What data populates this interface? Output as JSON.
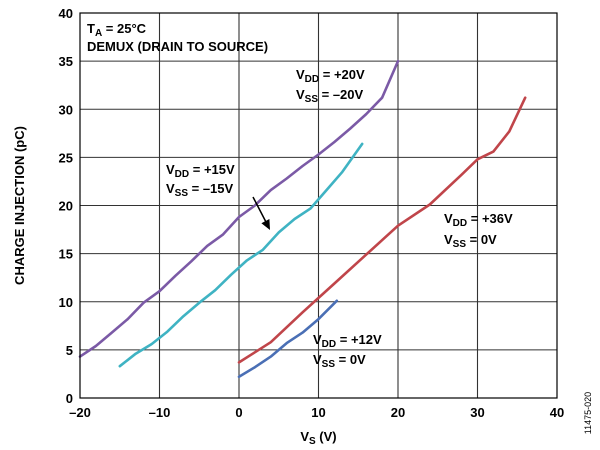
{
  "chart_data": {
    "type": "line",
    "title": "",
    "xlabel": "V|S| (V)",
    "ylabel": "CHARGE INJECTION (pC)",
    "xlim": [
      -20,
      40
    ],
    "ylim": [
      0,
      40
    ],
    "xticks": [
      -20,
      -10,
      0,
      10,
      20,
      30,
      40
    ],
    "yticks": [
      0,
      5,
      10,
      15,
      20,
      25,
      30,
      35,
      40
    ],
    "xtick_labels": [
      "–20",
      "–10",
      "0",
      "10",
      "20",
      "30",
      "40"
    ],
    "ytick_labels": [
      "0",
      "5",
      "10",
      "15",
      "20",
      "25",
      "30",
      "35",
      "40"
    ],
    "grid": true,
    "series": [
      {
        "color": "#7b5aa6",
        "x": [
          -20,
          -18,
          -16,
          -14,
          -12,
          -10,
          -8,
          -6,
          -4,
          -2,
          0,
          2,
          4,
          6,
          8,
          10,
          12,
          14,
          16,
          18,
          20
        ],
        "y": [
          4.3,
          5.4,
          6.8,
          8.2,
          9.9,
          11.1,
          12.7,
          14.2,
          15.8,
          17.0,
          18.8,
          20.0,
          21.6,
          22.8,
          24.1,
          25.3,
          26.6,
          28.0,
          29.5,
          31.2,
          35.0
        ]
      },
      {
        "color": "#3fb3c3",
        "x": [
          -15,
          -13,
          -11,
          -9,
          -7,
          -5,
          -3,
          -1,
          1,
          3,
          5,
          7,
          9,
          11,
          13,
          15.5
        ],
        "y": [
          3.3,
          4.6,
          5.6,
          6.9,
          8.5,
          9.9,
          11.2,
          12.8,
          14.3,
          15.4,
          17.2,
          18.6,
          19.7,
          21.6,
          23.5,
          26.4
        ]
      },
      {
        "color": "#c0454a",
        "x": [
          0,
          4,
          8,
          12,
          16,
          20,
          24,
          28,
          30,
          32,
          34,
          36
        ],
        "y": [
          3.7,
          5.8,
          8.9,
          11.9,
          14.9,
          17.9,
          20.1,
          23.2,
          24.8,
          25.6,
          27.7,
          31.2
        ]
      },
      {
        "color": "#4a6fb5",
        "x": [
          0,
          2,
          4,
          6,
          8,
          10,
          12.3
        ],
        "y": [
          2.2,
          3.2,
          4.3,
          5.7,
          6.8,
          8.2,
          10.1
        ]
      }
    ],
    "annotations": [
      {
        "text": "T|A| = 25°C"
      },
      {
        "text": "DEMUX (DRAIN TO SOURCE)"
      },
      {
        "text": "V|DD| = +20V"
      },
      {
        "text": "V|SS| = –20V"
      },
      {
        "text": "V|DD| = +15V"
      },
      {
        "text": "V|SS| = –15V"
      },
      {
        "text": "V|DD| = +36V"
      },
      {
        "text": "V|SS| = 0V"
      },
      {
        "text": "V|DD| = +12V"
      },
      {
        "text": "V|SS| = 0V"
      }
    ],
    "figure_id": "11475-020"
  }
}
